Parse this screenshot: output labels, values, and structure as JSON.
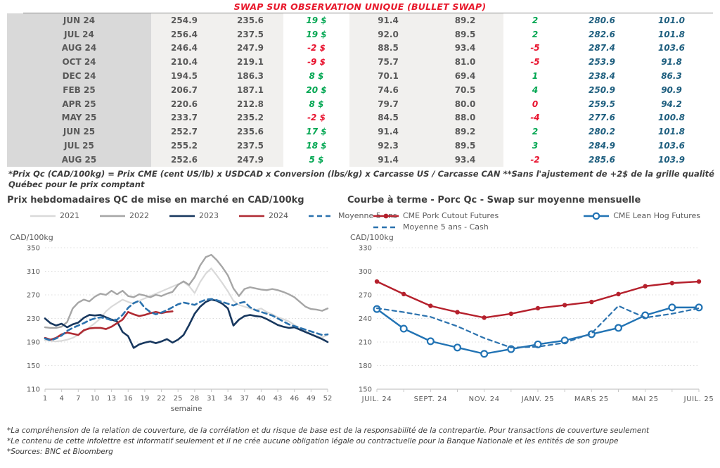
{
  "header": {
    "title": "SWAP SUR OBSERVATION UNIQUE (BULLET SWAP)"
  },
  "colors": {
    "title_red": "#e8192c",
    "positive_green": "#00a651",
    "negative_red": "#e8112d",
    "blue_value": "#1f5f7f"
  },
  "table": {
    "rows": [
      {
        "month": "JUN 24",
        "c1": "254.9",
        "c2": "235.6",
        "c3": "19 $",
        "c3_color": "green",
        "c4": "91.4",
        "c5": "89.2",
        "c6": "2",
        "c6_color": "green",
        "c7": "280.6",
        "c8": "101.0"
      },
      {
        "month": "JUL 24",
        "c1": "256.4",
        "c2": "237.5",
        "c3": "19 $",
        "c3_color": "green",
        "c4": "92.0",
        "c5": "89.5",
        "c6": "2",
        "c6_color": "green",
        "c7": "282.6",
        "c8": "101.8"
      },
      {
        "month": "AUG 24",
        "c1": "246.4",
        "c2": "247.9",
        "c3": "-2 $",
        "c3_color": "red",
        "c4": "88.5",
        "c5": "93.4",
        "c6": "-5",
        "c6_color": "red",
        "c7": "287.4",
        "c8": "103.6"
      },
      {
        "month": "OCT 24",
        "c1": "210.4",
        "c2": "219.1",
        "c3": "-9 $",
        "c3_color": "red",
        "c4": "75.7",
        "c5": "81.0",
        "c6": "-5",
        "c6_color": "red",
        "c7": "253.9",
        "c8": "91.8"
      },
      {
        "month": "DEC 24",
        "c1": "194.5",
        "c2": "186.3",
        "c3": "8 $",
        "c3_color": "green",
        "c4": "70.1",
        "c5": "69.4",
        "c6": "1",
        "c6_color": "green",
        "c7": "238.4",
        "c8": "86.3"
      },
      {
        "month": "FEB 25",
        "c1": "206.7",
        "c2": "187.1",
        "c3": "20 $",
        "c3_color": "green",
        "c4": "74.6",
        "c5": "70.5",
        "c6": "4",
        "c6_color": "green",
        "c7": "250.9",
        "c8": "90.9"
      },
      {
        "month": "APR 25",
        "c1": "220.6",
        "c2": "212.8",
        "c3": "8 $",
        "c3_color": "green",
        "c4": "79.7",
        "c5": "80.0",
        "c6": "0",
        "c6_color": "red",
        "c7": "259.5",
        "c8": "94.2"
      },
      {
        "month": "MAY 25",
        "c1": "233.7",
        "c2": "235.2",
        "c3": "-2 $",
        "c3_color": "red",
        "c4": "84.5",
        "c5": "88.0",
        "c6": "-4",
        "c6_color": "red",
        "c7": "277.6",
        "c8": "100.8"
      },
      {
        "month": "JUN 25",
        "c1": "252.7",
        "c2": "235.6",
        "c3": "17 $",
        "c3_color": "green",
        "c4": "91.4",
        "c5": "89.2",
        "c6": "2",
        "c6_color": "green",
        "c7": "280.2",
        "c8": "101.8"
      },
      {
        "month": "JUL 25",
        "c1": "255.2",
        "c2": "237.5",
        "c3": "18 $",
        "c3_color": "green",
        "c4": "92.3",
        "c5": "89.5",
        "c6": "3",
        "c6_color": "green",
        "c7": "284.9",
        "c8": "103.6"
      },
      {
        "month": "AUG 25",
        "c1": "252.6",
        "c2": "247.9",
        "c3": "5 $",
        "c3_color": "green",
        "c4": "91.4",
        "c5": "93.4",
        "c6": "-2",
        "c6_color": "red",
        "c7": "285.6",
        "c8": "103.9"
      }
    ],
    "footnote": "*Prix Qc (CAD/100kg) = Prix CME (cent US/lb) x USDCAD x Conversion (lbs/kg) x Carcasse US / Carcasse CAN **Sans l'ajustement de +2$ de la grille qualité Québec pour le prix comptant"
  },
  "chart_data": [
    {
      "type": "line",
      "title": "Prix hebdomadaires QC de mise en marché en CAD/100kg",
      "ylabel": "CAD/100kg",
      "xlabel": "semaine",
      "ylim": [
        110,
        350
      ],
      "y_ticks": [
        110,
        150,
        190,
        230,
        270,
        310,
        350
      ],
      "x_range": [
        1,
        52
      ],
      "x_ticks": [
        1,
        4,
        7,
        10,
        13,
        16,
        19,
        22,
        25,
        28,
        31,
        34,
        37,
        40,
        43,
        46,
        49,
        52
      ],
      "grid": true,
      "legend_position": "top",
      "series": [
        {
          "name": "2021",
          "color": "#d9d9d9",
          "width": 2.2,
          "values": [
            193,
            192,
            191,
            192,
            194,
            197,
            202,
            208,
            215,
            222,
            230,
            242,
            250,
            256,
            262,
            258,
            255,
            260,
            264,
            268,
            272,
            276,
            280,
            284,
            288,
            292,
            285,
            273,
            292,
            306,
            315,
            303,
            290,
            276,
            260,
            253,
            250,
            247,
            244,
            247,
            241,
            237,
            232,
            229,
            225,
            219,
            213,
            208,
            204,
            200,
            198,
            202
          ]
        },
        {
          "name": "2022",
          "color": "#a6a6a6",
          "width": 2.4,
          "values": [
            215,
            214,
            214,
            216,
            224,
            247,
            257,
            262,
            259,
            267,
            272,
            270,
            277,
            271,
            277,
            268,
            266,
            271,
            269,
            266,
            270,
            268,
            272,
            275,
            287,
            293,
            287,
            300,
            320,
            334,
            338,
            329,
            317,
            303,
            281,
            268,
            280,
            283,
            281,
            279,
            278,
            280,
            278,
            275,
            271,
            266,
            258,
            250,
            246,
            245,
            243,
            247
          ]
        },
        {
          "name": "2023",
          "color": "#17375e",
          "width": 2.6,
          "values": [
            230,
            222,
            218,
            221,
            215,
            220,
            223,
            231,
            236,
            235,
            236,
            232,
            228,
            225,
            207,
            200,
            180,
            186,
            189,
            191,
            188,
            191,
            195,
            189,
            194,
            202,
            219,
            238,
            250,
            258,
            262,
            260,
            255,
            247,
            218,
            228,
            234,
            236,
            234,
            233,
            229,
            224,
            219,
            216,
            214,
            215,
            211,
            207,
            203,
            199,
            195,
            190
          ]
        },
        {
          "name": "2024",
          "color": "#b02b33",
          "width": 2.6,
          "values": [
            197,
            194,
            197,
            203,
            206,
            204,
            202,
            210,
            213,
            214,
            214,
            212,
            216,
            222,
            228,
            241,
            237,
            234,
            236,
            239,
            241,
            239,
            241,
            242
          ]
        },
        {
          "name": "Moyenne 5 ans",
          "color": "#2b72ae",
          "width": 2.6,
          "dash": "7 5",
          "values": [
            196,
            193,
            196,
            201,
            209,
            214,
            218,
            222,
            227,
            230,
            232,
            230,
            227,
            228,
            236,
            248,
            256,
            260,
            248,
            241,
            237,
            240,
            244,
            249,
            254,
            257,
            255,
            253,
            258,
            262,
            263,
            261,
            258,
            255,
            252,
            256,
            258,
            249,
            244,
            241,
            238,
            235,
            230,
            225,
            220,
            217,
            214,
            211,
            208,
            205,
            202,
            203
          ]
        }
      ]
    },
    {
      "type": "line",
      "title": "Courbe à terme - Porc Qc - Swap sur moyenne mensuelle",
      "ylabel": "CAD/100kg",
      "xlabel": "",
      "ylim": [
        150,
        330
      ],
      "y_ticks": [
        150,
        180,
        210,
        240,
        270,
        300,
        330
      ],
      "x_range": [
        0,
        12
      ],
      "x_tick_labels": [
        {
          "v": 0,
          "label": "JUIL. 24"
        },
        {
          "v": 2,
          "label": "SEPT. 24"
        },
        {
          "v": 4,
          "label": "NOV. 24"
        },
        {
          "v": 6,
          "label": "JANV. 25"
        },
        {
          "v": 8,
          "label": "MARS 25"
        },
        {
          "v": 10,
          "label": "MAI 25"
        },
        {
          "v": 12,
          "label": "JUIL. 25"
        }
      ],
      "grid": true,
      "legend_position": "top",
      "series": [
        {
          "name": "CME Pork Cutout Futures",
          "color": "#b5202c",
          "width": 2.4,
          "marker": "filled-circle",
          "values": [
            287,
            271,
            256,
            248,
            241,
            246,
            253,
            257,
            261,
            271,
            281,
            285,
            287
          ]
        },
        {
          "name": "CME Lean Hog Futures",
          "color": "#2173b4",
          "width": 2.4,
          "marker": "open-circle",
          "values": [
            252,
            227,
            211,
            203,
            195,
            201,
            207,
            212,
            220,
            228,
            244,
            254,
            254
          ]
        },
        {
          "name": "Moyenne 5 ans - Cash",
          "color": "#2b72ae",
          "width": 2.2,
          "dash": "6 5",
          "values": [
            253,
            248,
            242,
            230,
            215,
            203,
            204,
            209,
            221,
            256,
            241,
            246,
            253
          ]
        }
      ]
    }
  ],
  "footer": {
    "lines": [
      "*La compréhension de la relation de couverture, de la corrélation et du risque de base est de la responsabilité de la contrepartie. Pour transactions de couverture seulement",
      "*Le contenu de cette infolettre est informatif seulement et il ne crée aucune obligation légale ou contractuelle pour la Banque Nationale et les entités de son groupe",
      "*Sources: BNC et Bloomberg"
    ]
  }
}
